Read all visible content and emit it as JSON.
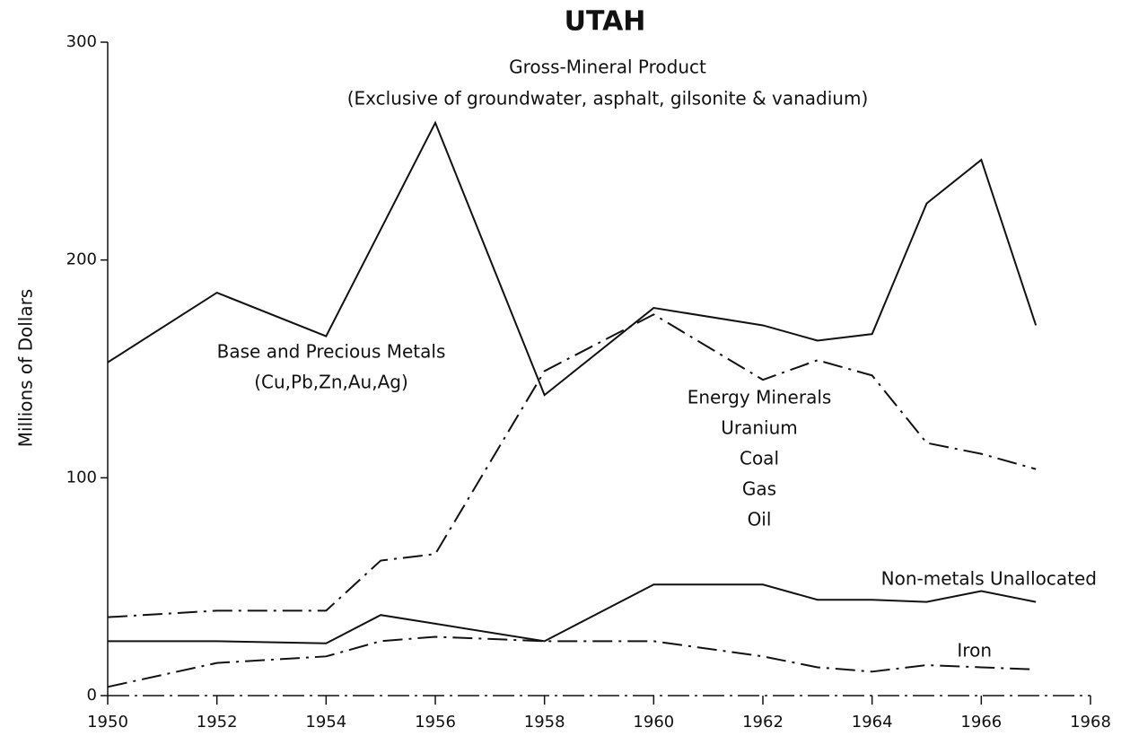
{
  "chart_data": {
    "type": "line",
    "title": "UTAH",
    "subtitle": [
      "Gross-Mineral Product",
      "(Exclusive of groundwater, asphalt, gilsonite & vanadium)"
    ],
    "y_label": "Millions of Dollars",
    "x": [
      1950,
      1952,
      1954,
      1955,
      1956,
      1958,
      1960,
      1962,
      1963,
      1964,
      1965,
      1966,
      1967
    ],
    "series": [
      {
        "name": "Base and Precious Metals",
        "sublabels": [
          "(Cu,Pb,Zn,Au,Ag)"
        ],
        "color": "#111111",
        "style": "solid",
        "values": [
          153,
          185,
          165,
          214,
          263,
          138,
          178,
          170,
          163,
          166,
          226,
          246,
          170
        ]
      },
      {
        "name": "Energy Minerals",
        "sublabels": [
          "Uranium",
          "Coal",
          "Gas",
          "Oil"
        ],
        "color": "#111111",
        "style": "dashdot",
        "values": [
          36,
          39,
          39,
          62,
          65,
          149,
          175,
          145,
          154,
          147,
          116,
          111,
          104
        ]
      },
      {
        "name": "Non-metals Unallocated",
        "sublabels": [],
        "color": "#111111",
        "style": "solid",
        "values": [
          25,
          25,
          24,
          37,
          33,
          25,
          51,
          51,
          44,
          44,
          43,
          48,
          43
        ]
      },
      {
        "name": "Iron",
        "sublabels": [],
        "color": "#111111",
        "style": "dashdot",
        "values": [
          4,
          15,
          18,
          25,
          27,
          25,
          25,
          18,
          13,
          11,
          14,
          13,
          12
        ]
      }
    ],
    "xlim": [
      1950,
      1968
    ],
    "xticks": [
      1950,
      1952,
      1954,
      1956,
      1958,
      1960,
      1962,
      1964,
      1966,
      1968
    ],
    "ylim": [
      0,
      300
    ],
    "yticks": [
      0,
      100,
      200,
      300
    ],
    "grid": false
  }
}
